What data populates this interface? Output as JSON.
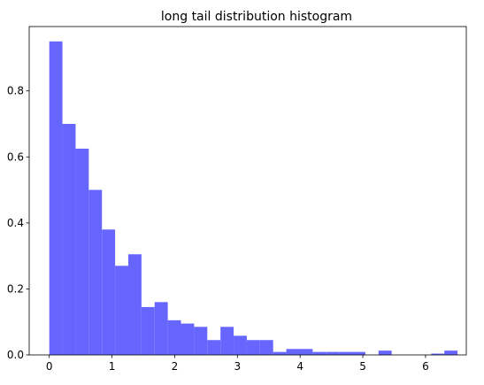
{
  "chart_data": {
    "type": "bar",
    "title": "long tail distribution histogram",
    "xlabel": "",
    "ylabel": "",
    "xlim": [
      -0.32,
      6.65
    ],
    "ylim": [
      0,
      0.995
    ],
    "xticks": [
      0,
      1,
      2,
      3,
      4,
      5,
      6
    ],
    "yticks": [
      0.0,
      0.2,
      0.4,
      0.6,
      0.8
    ],
    "ytick_labels": [
      "0.0",
      "0.2",
      "0.4",
      "0.6",
      "0.8"
    ],
    "grid": false,
    "bar_color": "#6666ff",
    "bins": [
      {
        "x0": 0.0,
        "x1": 0.21,
        "value": 0.95
      },
      {
        "x0": 0.21,
        "x1": 0.42,
        "value": 0.7
      },
      {
        "x0": 0.42,
        "x1": 0.63,
        "value": 0.625
      },
      {
        "x0": 0.63,
        "x1": 0.84,
        "value": 0.5
      },
      {
        "x0": 0.84,
        "x1": 1.05,
        "value": 0.38
      },
      {
        "x0": 1.05,
        "x1": 1.26,
        "value": 0.27
      },
      {
        "x0": 1.26,
        "x1": 1.47,
        "value": 0.305
      },
      {
        "x0": 1.47,
        "x1": 1.68,
        "value": 0.145
      },
      {
        "x0": 1.68,
        "x1": 1.89,
        "value": 0.16
      },
      {
        "x0": 1.89,
        "x1": 2.1,
        "value": 0.105
      },
      {
        "x0": 2.1,
        "x1": 2.31,
        "value": 0.095
      },
      {
        "x0": 2.31,
        "x1": 2.52,
        "value": 0.085
      },
      {
        "x0": 2.52,
        "x1": 2.73,
        "value": 0.045
      },
      {
        "x0": 2.73,
        "x1": 2.94,
        "value": 0.085
      },
      {
        "x0": 2.94,
        "x1": 3.15,
        "value": 0.058
      },
      {
        "x0": 3.15,
        "x1": 3.36,
        "value": 0.045
      },
      {
        "x0": 3.36,
        "x1": 3.57,
        "value": 0.045
      },
      {
        "x0": 3.57,
        "x1": 3.78,
        "value": 0.009
      },
      {
        "x0": 3.78,
        "x1": 3.99,
        "value": 0.018
      },
      {
        "x0": 3.99,
        "x1": 4.2,
        "value": 0.018
      },
      {
        "x0": 4.2,
        "x1": 4.41,
        "value": 0.009
      },
      {
        "x0": 4.41,
        "x1": 4.62,
        "value": 0.009
      },
      {
        "x0": 4.62,
        "x1": 4.83,
        "value": 0.009
      },
      {
        "x0": 4.83,
        "x1": 5.04,
        "value": 0.009
      },
      {
        "x0": 5.04,
        "x1": 5.25,
        "value": 0.0
      },
      {
        "x0": 5.25,
        "x1": 5.46,
        "value": 0.013
      },
      {
        "x0": 5.46,
        "x1": 5.67,
        "value": 0.0
      },
      {
        "x0": 5.67,
        "x1": 5.88,
        "value": 0.0
      },
      {
        "x0": 5.88,
        "x1": 6.09,
        "value": 0.0
      },
      {
        "x0": 6.09,
        "x1": 6.3,
        "value": 0.004
      },
      {
        "x0": 6.3,
        "x1": 6.51,
        "value": 0.013
      }
    ]
  }
}
